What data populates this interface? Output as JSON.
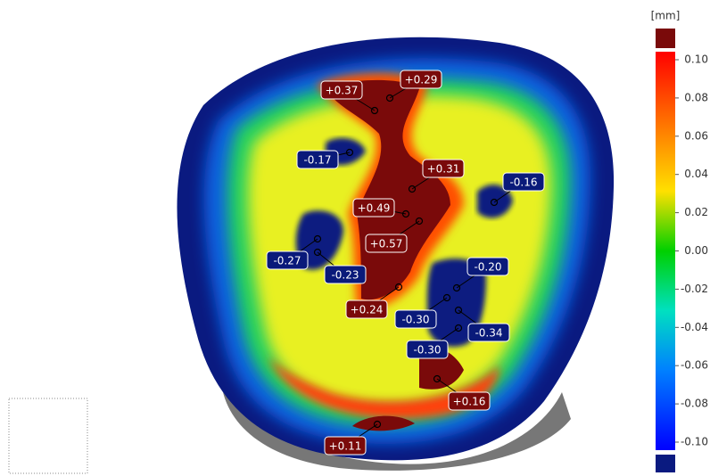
{
  "colorbar": {
    "unit": "[mm]",
    "ticks": [
      "0.10",
      "0.08",
      "0.06",
      "0.04",
      "0.02",
      "0.00",
      "-0.02",
      "-0.04",
      "-0.06",
      "-0.08",
      "-0.10"
    ]
  },
  "annotations": [
    {
      "label": "+0.37"
    },
    {
      "label": "+0.29"
    },
    {
      "label": "-0.17"
    },
    {
      "label": "+0.31"
    },
    {
      "label": "-0.16"
    },
    {
      "label": "+0.49"
    },
    {
      "label": "+0.57"
    },
    {
      "label": "-0.27"
    },
    {
      "label": "-0.23"
    },
    {
      "label": "-0.20"
    },
    {
      "label": "+0.24"
    },
    {
      "label": "-0.30"
    },
    {
      "label": "-0.34"
    },
    {
      "label": "-0.30"
    },
    {
      "label": "+0.16"
    },
    {
      "label": "+0.11"
    }
  ]
}
